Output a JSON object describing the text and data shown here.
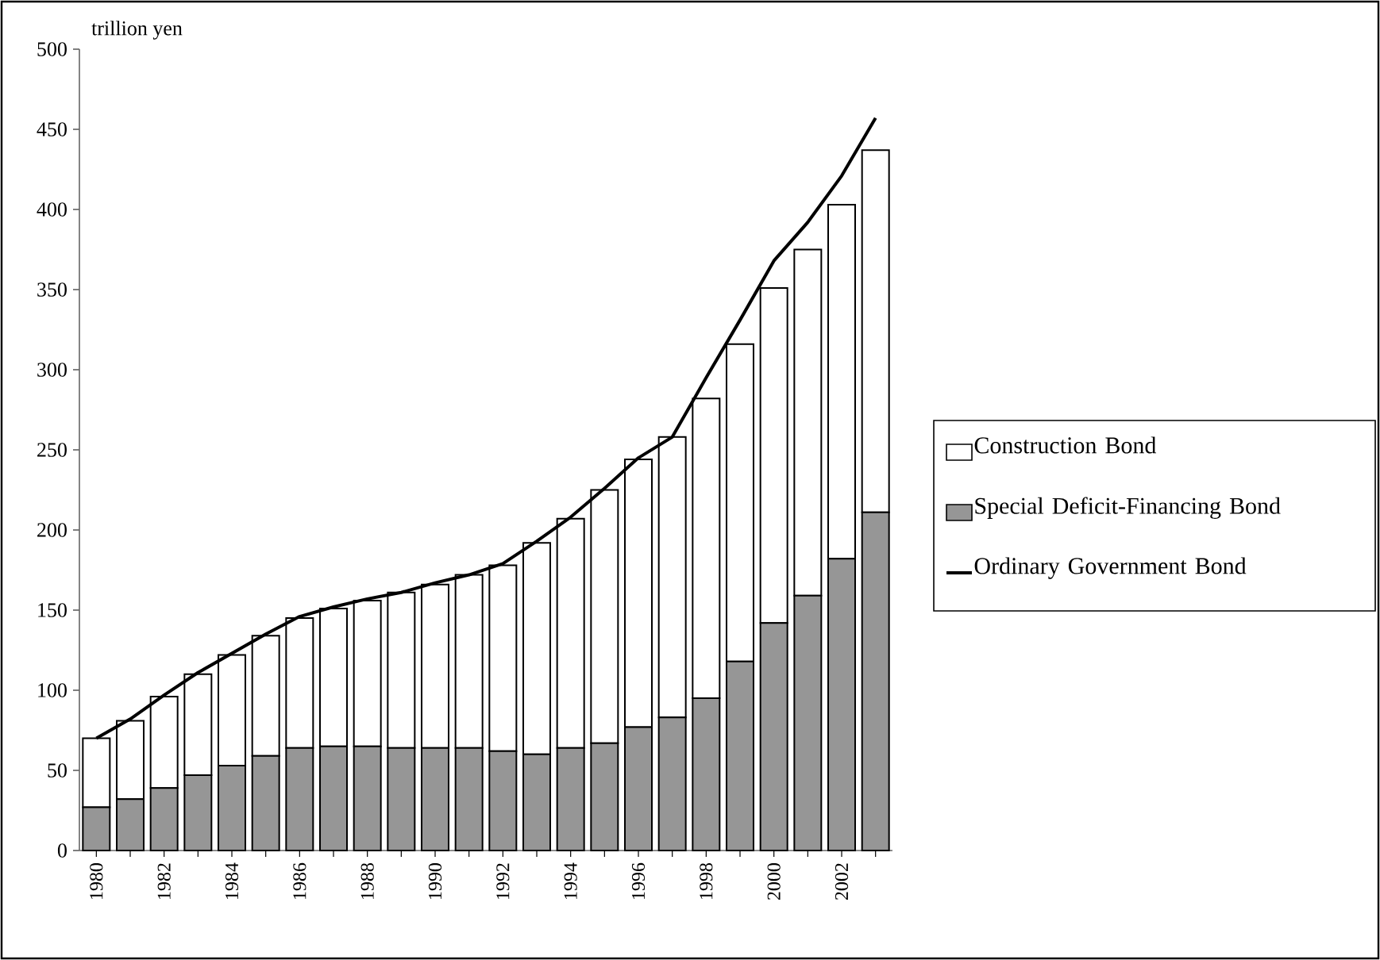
{
  "chart_data": {
    "type": "bar",
    "stacked": true,
    "ylabel": "trillion yen",
    "categories": [
      "1980",
      null,
      "1982",
      null,
      "1984",
      null,
      "1986",
      null,
      "1988",
      null,
      "1990",
      null,
      "1992",
      null,
      "1994",
      null,
      "1996",
      null,
      "1998",
      null,
      "2000",
      null,
      "2002",
      null
    ],
    "series": [
      {
        "name": "Special Deficit-Financing Bond",
        "color": "#969696",
        "values": [
          27,
          32,
          39,
          47,
          53,
          59,
          64,
          65,
          65,
          64,
          64,
          64,
          62,
          60,
          64,
          67,
          77,
          83,
          95,
          118,
          142,
          159,
          182,
          211
        ]
      },
      {
        "name": "Construction Bond",
        "color": "#ffffff",
        "values": [
          43,
          49,
          57,
          63,
          69,
          75,
          81,
          86,
          91,
          97,
          102,
          108,
          116,
          132,
          143,
          158,
          167,
          175,
          187,
          198,
          209,
          216,
          221,
          226
        ]
      },
      {
        "name": "Ordinary Government Bond",
        "type": "line",
        "color": "#000000",
        "values": [
          70,
          82,
          97,
          111,
          123,
          135,
          146,
          152,
          157,
          161,
          167,
          172,
          179,
          193,
          208,
          226,
          245,
          258,
          295,
          331,
          368,
          392,
          421,
          457
        ]
      }
    ],
    "ylim": [
      0,
      500
    ],
    "yticks": [
      0,
      50,
      100,
      150,
      200,
      250,
      300,
      350,
      400,
      450,
      500
    ],
    "legend": "right"
  }
}
